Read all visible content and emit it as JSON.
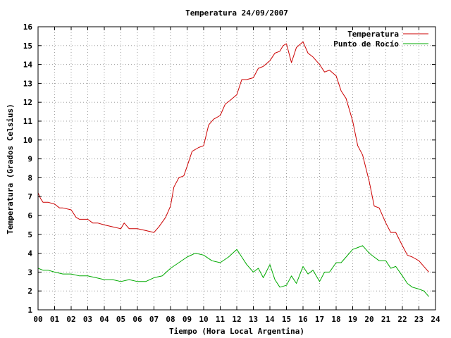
{
  "chart_data": {
    "type": "line",
    "title": "Temperatura 24/09/2007",
    "xlabel": "Tiempo (Hora Local Argentina)",
    "ylabel": "Temperatura (Grados Celsius)",
    "xlim": [
      0,
      24
    ],
    "ylim": [
      1,
      16
    ],
    "grid": true,
    "legend_position": "top-right",
    "x_ticks": [
      "00",
      "01",
      "02",
      "03",
      "04",
      "05",
      "06",
      "07",
      "08",
      "09",
      "10",
      "11",
      "12",
      "13",
      "14",
      "15",
      "16",
      "17",
      "18",
      "19",
      "20",
      "21",
      "22",
      "23",
      "24"
    ],
    "y_ticks": [
      "1",
      "2",
      "3",
      "4",
      "5",
      "6",
      "7",
      "8",
      "9",
      "10",
      "11",
      "12",
      "13",
      "14",
      "15",
      "16"
    ],
    "series": [
      {
        "name": "Temperatura",
        "color": "#cc0000",
        "x": [
          0.0,
          0.15,
          0.3,
          0.6,
          1.0,
          1.3,
          1.5,
          2.0,
          2.3,
          2.5,
          3.0,
          3.3,
          3.6,
          4.0,
          4.5,
          5.0,
          5.2,
          5.5,
          6.0,
          6.5,
          7.0,
          7.3,
          7.7,
          8.0,
          8.2,
          8.5,
          8.8,
          9.0,
          9.3,
          9.7,
          10.0,
          10.3,
          10.6,
          11.0,
          11.3,
          11.6,
          12.0,
          12.3,
          12.6,
          13.0,
          13.3,
          13.6,
          14.0,
          14.3,
          14.6,
          14.8,
          15.0,
          15.3,
          15.6,
          16.0,
          16.3,
          16.6,
          17.0,
          17.3,
          17.6,
          18.0,
          18.3,
          18.6,
          19.0,
          19.3,
          19.6,
          20.0,
          20.3,
          20.6,
          21.0,
          21.3,
          21.6,
          22.0,
          22.3,
          22.6,
          23.0,
          23.3,
          23.6
        ],
        "y": [
          7.2,
          6.9,
          6.7,
          6.7,
          6.6,
          6.4,
          6.4,
          6.3,
          5.9,
          5.8,
          5.8,
          5.6,
          5.6,
          5.5,
          5.4,
          5.3,
          5.6,
          5.3,
          5.3,
          5.2,
          5.1,
          5.4,
          5.9,
          6.5,
          7.5,
          8.0,
          8.1,
          8.6,
          9.4,
          9.6,
          9.7,
          10.8,
          11.1,
          11.3,
          11.9,
          12.1,
          12.4,
          13.2,
          13.2,
          13.3,
          13.8,
          13.9,
          14.2,
          14.6,
          14.7,
          15.0,
          15.1,
          14.1,
          14.9,
          15.2,
          14.6,
          14.4,
          14.0,
          13.6,
          13.7,
          13.4,
          12.6,
          12.2,
          11.0,
          9.7,
          9.2,
          7.8,
          6.5,
          6.4,
          5.6,
          5.1,
          5.1,
          4.4,
          3.9,
          3.8,
          3.6,
          3.3,
          3.0
        ]
      },
      {
        "name": "Punto de Rocío",
        "color": "#00aa00",
        "x": [
          0.0,
          0.3,
          0.6,
          1.0,
          1.5,
          2.0,
          2.5,
          3.0,
          3.5,
          4.0,
          4.5,
          5.0,
          5.5,
          6.0,
          6.5,
          7.0,
          7.5,
          8.0,
          8.5,
          9.0,
          9.5,
          10.0,
          10.5,
          11.0,
          11.5,
          12.0,
          12.3,
          12.6,
          13.0,
          13.3,
          13.6,
          14.0,
          14.3,
          14.6,
          15.0,
          15.3,
          15.6,
          16.0,
          16.3,
          16.6,
          17.0,
          17.3,
          17.6,
          18.0,
          18.3,
          18.6,
          19.0,
          19.3,
          19.6,
          20.0,
          20.3,
          20.6,
          21.0,
          21.3,
          21.6,
          22.0,
          22.3,
          22.6,
          23.0,
          23.3,
          23.6
        ],
        "y": [
          3.2,
          3.1,
          3.1,
          3.0,
          2.9,
          2.9,
          2.8,
          2.8,
          2.7,
          2.6,
          2.6,
          2.5,
          2.6,
          2.5,
          2.5,
          2.7,
          2.8,
          3.2,
          3.5,
          3.8,
          4.0,
          3.9,
          3.6,
          3.5,
          3.8,
          4.2,
          3.8,
          3.4,
          3.0,
          3.2,
          2.7,
          3.4,
          2.6,
          2.2,
          2.3,
          2.8,
          2.4,
          3.3,
          2.9,
          3.1,
          2.5,
          3.0,
          3.0,
          3.5,
          3.5,
          3.8,
          4.2,
          4.3,
          4.4,
          4.0,
          3.8,
          3.6,
          3.6,
          3.2,
          3.3,
          2.8,
          2.4,
          2.2,
          2.1,
          2.0,
          1.7
        ]
      }
    ]
  }
}
